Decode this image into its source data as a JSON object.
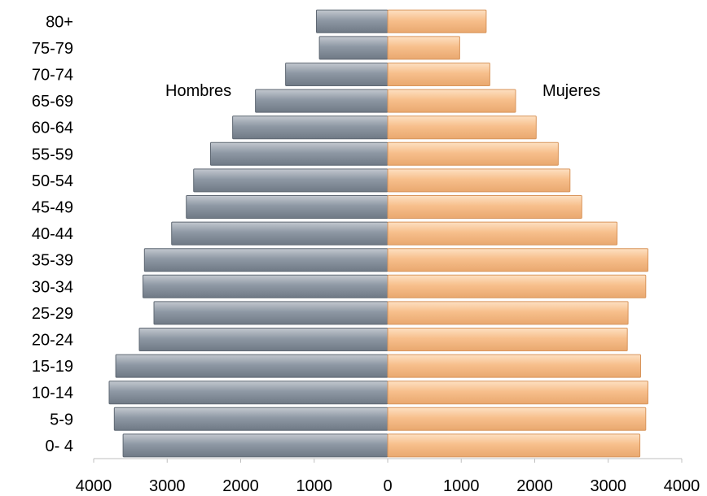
{
  "chart_data": {
    "type": "bar",
    "orientation": "horizontal",
    "layout": "population-pyramid",
    "categories": [
      "0- 4",
      "5-9",
      "10-14",
      "15-19",
      "20-24",
      "25-29",
      "30-34",
      "35-39",
      "40-44",
      "45-49",
      "50-54",
      "55-59",
      "60-64",
      "65-69",
      "70-74",
      "75-79",
      "80+"
    ],
    "series": [
      {
        "name": "Hombres",
        "side": "left",
        "color": "#8c96a2",
        "values": [
          3600,
          3720,
          3790,
          3700,
          3380,
          3180,
          3330,
          3310,
          2940,
          2740,
          2640,
          2410,
          2110,
          1800,
          1390,
          930,
          970
        ]
      },
      {
        "name": "Mujeres",
        "side": "right",
        "color": "#f7c08e",
        "values": [
          3430,
          3510,
          3540,
          3440,
          3260,
          3270,
          3510,
          3540,
          3120,
          2640,
          2480,
          2320,
          2020,
          1740,
          1390,
          980,
          1340
        ]
      }
    ],
    "xticks": [
      "4000",
      "3000",
      "2000",
      "1000",
      "0",
      "1000",
      "2000",
      "3000",
      "4000"
    ],
    "xlim": [
      -4000,
      4000
    ],
    "grid": false,
    "legend": "none"
  }
}
